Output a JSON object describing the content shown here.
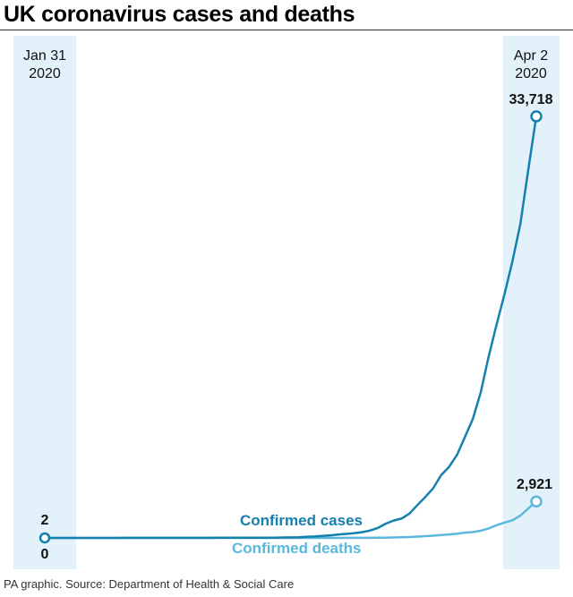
{
  "title": "UK coronavirus cases and deaths",
  "source": "PA graphic. Source: Department of Health & Social Care",
  "colors": {
    "cases": "#1380ad",
    "deaths": "#5ab8dd",
    "band": "#e3f1fb",
    "text": "#111111"
  },
  "chart_data": {
    "type": "line",
    "title": "UK coronavirus cases and deaths",
    "x_start_label": [
      "Jan 31",
      "2020"
    ],
    "x_end_label": [
      "Apr 2",
      "2020"
    ],
    "x": [
      "2020-01-31",
      "2020-02-01",
      "2020-02-02",
      "2020-02-03",
      "2020-02-04",
      "2020-02-05",
      "2020-02-06",
      "2020-02-07",
      "2020-02-08",
      "2020-02-09",
      "2020-02-10",
      "2020-02-11",
      "2020-02-12",
      "2020-02-13",
      "2020-02-14",
      "2020-02-15",
      "2020-02-16",
      "2020-02-17",
      "2020-02-18",
      "2020-02-19",
      "2020-02-20",
      "2020-02-21",
      "2020-02-22",
      "2020-02-23",
      "2020-02-24",
      "2020-02-25",
      "2020-02-26",
      "2020-02-27",
      "2020-02-28",
      "2020-02-29",
      "2020-03-01",
      "2020-03-02",
      "2020-03-03",
      "2020-03-04",
      "2020-03-05",
      "2020-03-06",
      "2020-03-07",
      "2020-03-08",
      "2020-03-09",
      "2020-03-10",
      "2020-03-11",
      "2020-03-12",
      "2020-03-13",
      "2020-03-14",
      "2020-03-15",
      "2020-03-16",
      "2020-03-17",
      "2020-03-18",
      "2020-03-19",
      "2020-03-20",
      "2020-03-21",
      "2020-03-22",
      "2020-03-23",
      "2020-03-24",
      "2020-03-25",
      "2020-03-26",
      "2020-03-27",
      "2020-03-28",
      "2020-03-29",
      "2020-03-30",
      "2020-03-31",
      "2020-04-01",
      "2020-04-02"
    ],
    "series": [
      {
        "name": "Confirmed cases",
        "values": [
          2,
          2,
          2,
          2,
          2,
          2,
          3,
          3,
          3,
          3,
          8,
          8,
          9,
          9,
          9,
          9,
          9,
          9,
          9,
          9,
          9,
          9,
          13,
          13,
          13,
          13,
          15,
          16,
          20,
          23,
          35,
          40,
          51,
          85,
          115,
          163,
          206,
          273,
          321,
          373,
          456,
          590,
          798,
          1140,
          1391,
          1543,
          1950,
          2626,
          3269,
          3983,
          5018,
          5683,
          6650,
          8077,
          9529,
          11658,
          14543,
          17089,
          19522,
          22141,
          25150,
          29474,
          33718
        ],
        "start_label": "2",
        "end_label": "33,718"
      },
      {
        "name": "Confirmed deaths",
        "values": [
          0,
          0,
          0,
          0,
          0,
          0,
          0,
          0,
          0,
          0,
          0,
          0,
          0,
          0,
          0,
          0,
          0,
          0,
          0,
          0,
          0,
          0,
          0,
          0,
          0,
          0,
          0,
          0,
          0,
          0,
          0,
          0,
          0,
          0,
          1,
          2,
          2,
          3,
          4,
          6,
          8,
          10,
          11,
          21,
          35,
          55,
          71,
          104,
          144,
          177,
          233,
          281,
          335,
          422,
          465,
          578,
          759,
          1019,
          1228,
          1408,
          1789,
          2352,
          2921
        ],
        "start_label": "0",
        "end_label": "2,921"
      }
    ],
    "ylim": [
      0,
      33718
    ]
  }
}
